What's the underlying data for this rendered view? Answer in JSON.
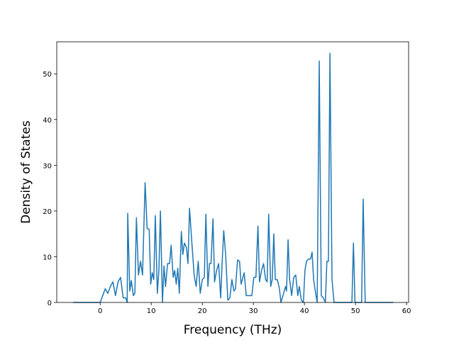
{
  "chart_data": {
    "type": "line",
    "xlabel": "Frequency (THz)",
    "ylabel": "Density of States",
    "color": "#1f77b4",
    "xlim": [
      -8.5,
      60.4
    ],
    "ylim": [
      0,
      57
    ],
    "xticks": [
      0,
      10,
      20,
      30,
      40,
      50,
      60
    ],
    "yticks": [
      0,
      10,
      20,
      30,
      40,
      50
    ],
    "x": [
      -5.3,
      0,
      0.5,
      1,
      1.5,
      2,
      2.5,
      3,
      3.5,
      4,
      4.5,
      5,
      5.3,
      5.4,
      5.8,
      6.1,
      6.5,
      6.8,
      7.1,
      7.5,
      7.9,
      8.3,
      8.8,
      9.2,
      9.6,
      9.9,
      10.2,
      10.5,
      10.8,
      11.2,
      11.5,
      11.8,
      12.2,
      12.5,
      12.8,
      13.2,
      13.6,
      13.9,
      14.3,
      14.6,
      14.9,
      15.2,
      15.5,
      15.9,
      16.2,
      16.5,
      16.9,
      17.2,
      17.5,
      17.9,
      18.4,
      18.8,
      19.2,
      19.6,
      20,
      20.4,
      20.7,
      21.1,
      21.4,
      21.7,
      22.1,
      22.4,
      22.8,
      23.2,
      23.6,
      23.9,
      24.2,
      24.6,
      25,
      25.4,
      25.8,
      26.2,
      26.5,
      26.9,
      27.3,
      27.6,
      28.2,
      28.6,
      29.2,
      29.7,
      30.1,
      30.5,
      30.9,
      31.2,
      31.6,
      32,
      32.4,
      32.7,
      33,
      33.4,
      33.7,
      34,
      34.3,
      34.7,
      35.1,
      35.4,
      35.8,
      36.3,
      36.5,
      36.8,
      37.1,
      37.5,
      37.9,
      38.3,
      38.7,
      39,
      39.4,
      39.8,
      40.1,
      40.4,
      40.8,
      41.2,
      41.5,
      41.8,
      42.2,
      42.5,
      42.9,
      43.3,
      43.7,
      44.1,
      44.4,
      44.7,
      45,
      45.4,
      45.8,
      49.3,
      49.6,
      49.9,
      51.2,
      51.5,
      51.9,
      57.4
    ],
    "values": [
      0,
      0,
      1.5,
      3,
      2,
      3.5,
      4.5,
      1.5,
      4.5,
      5.5,
      1,
      1,
      0,
      19.5,
      2.5,
      4.8,
      1.5,
      2,
      18.5,
      6,
      9,
      6,
      26.2,
      16.2,
      16,
      4,
      6.5,
      5,
      19,
      2,
      7,
      20,
      0,
      8,
      3.5,
      8.5,
      8.5,
      12.5,
      5.5,
      7,
      4,
      7.5,
      2,
      15.5,
      10.5,
      13,
      12,
      8.5,
      20.6,
      14,
      6,
      3.5,
      9,
      2,
      5,
      5.5,
      19.3,
      3.5,
      8.5,
      8.5,
      18.3,
      4.5,
      7,
      8.5,
      1,
      9,
      15.7,
      10,
      0.5,
      1,
      5,
      2.5,
      3,
      9.3,
      9,
      4,
      6.5,
      1.5,
      1.5,
      1.5,
      5.5,
      5.5,
      16.7,
      4.5,
      7,
      8.5,
      5,
      4.5,
      19.3,
      3.5,
      5,
      15,
      5,
      5,
      3,
      0,
      1.5,
      3.5,
      2.5,
      13.7,
      5,
      1.5,
      5.5,
      6,
      1.5,
      3.5,
      0.5,
      0,
      7,
      9,
      9.5,
      9.5,
      11,
      5,
      2,
      0,
      52.8,
      1.5,
      1,
      0,
      9,
      9,
      54.5,
      5,
      0,
      0,
      13,
      0,
      0,
      22.6,
      0,
      0
    ]
  }
}
